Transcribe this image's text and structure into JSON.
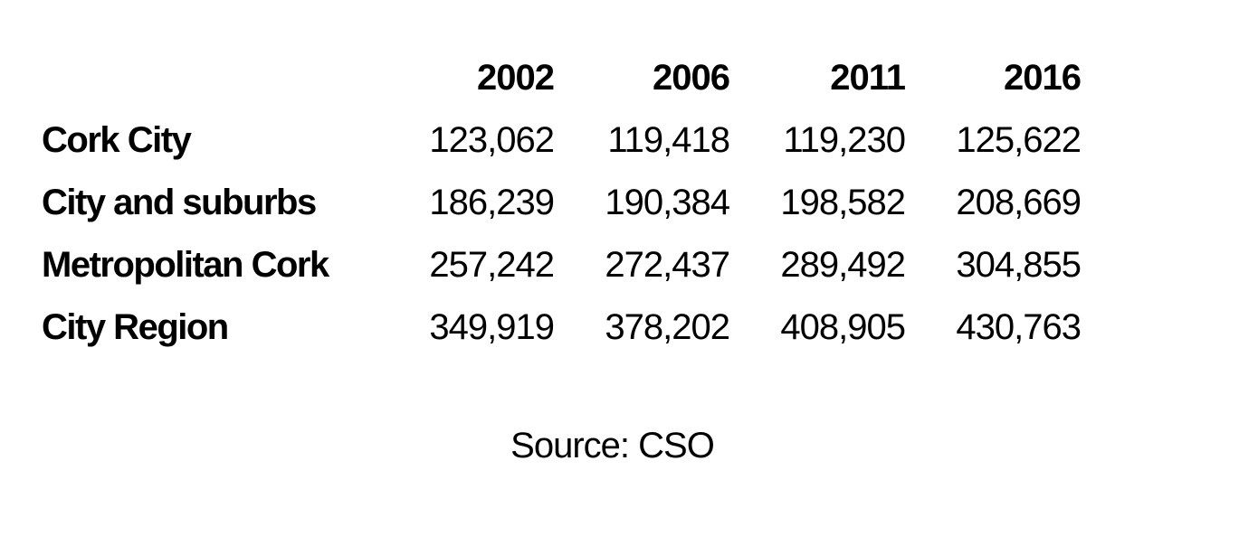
{
  "chart_data": {
    "type": "table",
    "columns": [
      "2002",
      "2006",
      "2011",
      "2016"
    ],
    "rows": [
      {
        "label": "Cork City",
        "values": [
          "123,062",
          "119,418",
          "119,230",
          "125,622"
        ]
      },
      {
        "label": "City and suburbs",
        "values": [
          "186,239",
          "190,384",
          "198,582",
          "208,669"
        ]
      },
      {
        "label": "Metropolitan Cork",
        "values": [
          "257,242",
          "272,437",
          "289,492",
          "304,855"
        ]
      },
      {
        "label": "City Region",
        "values": [
          "349,919",
          "378,202",
          "408,905",
          "430,763"
        ]
      }
    ]
  },
  "source": "Source: CSO"
}
